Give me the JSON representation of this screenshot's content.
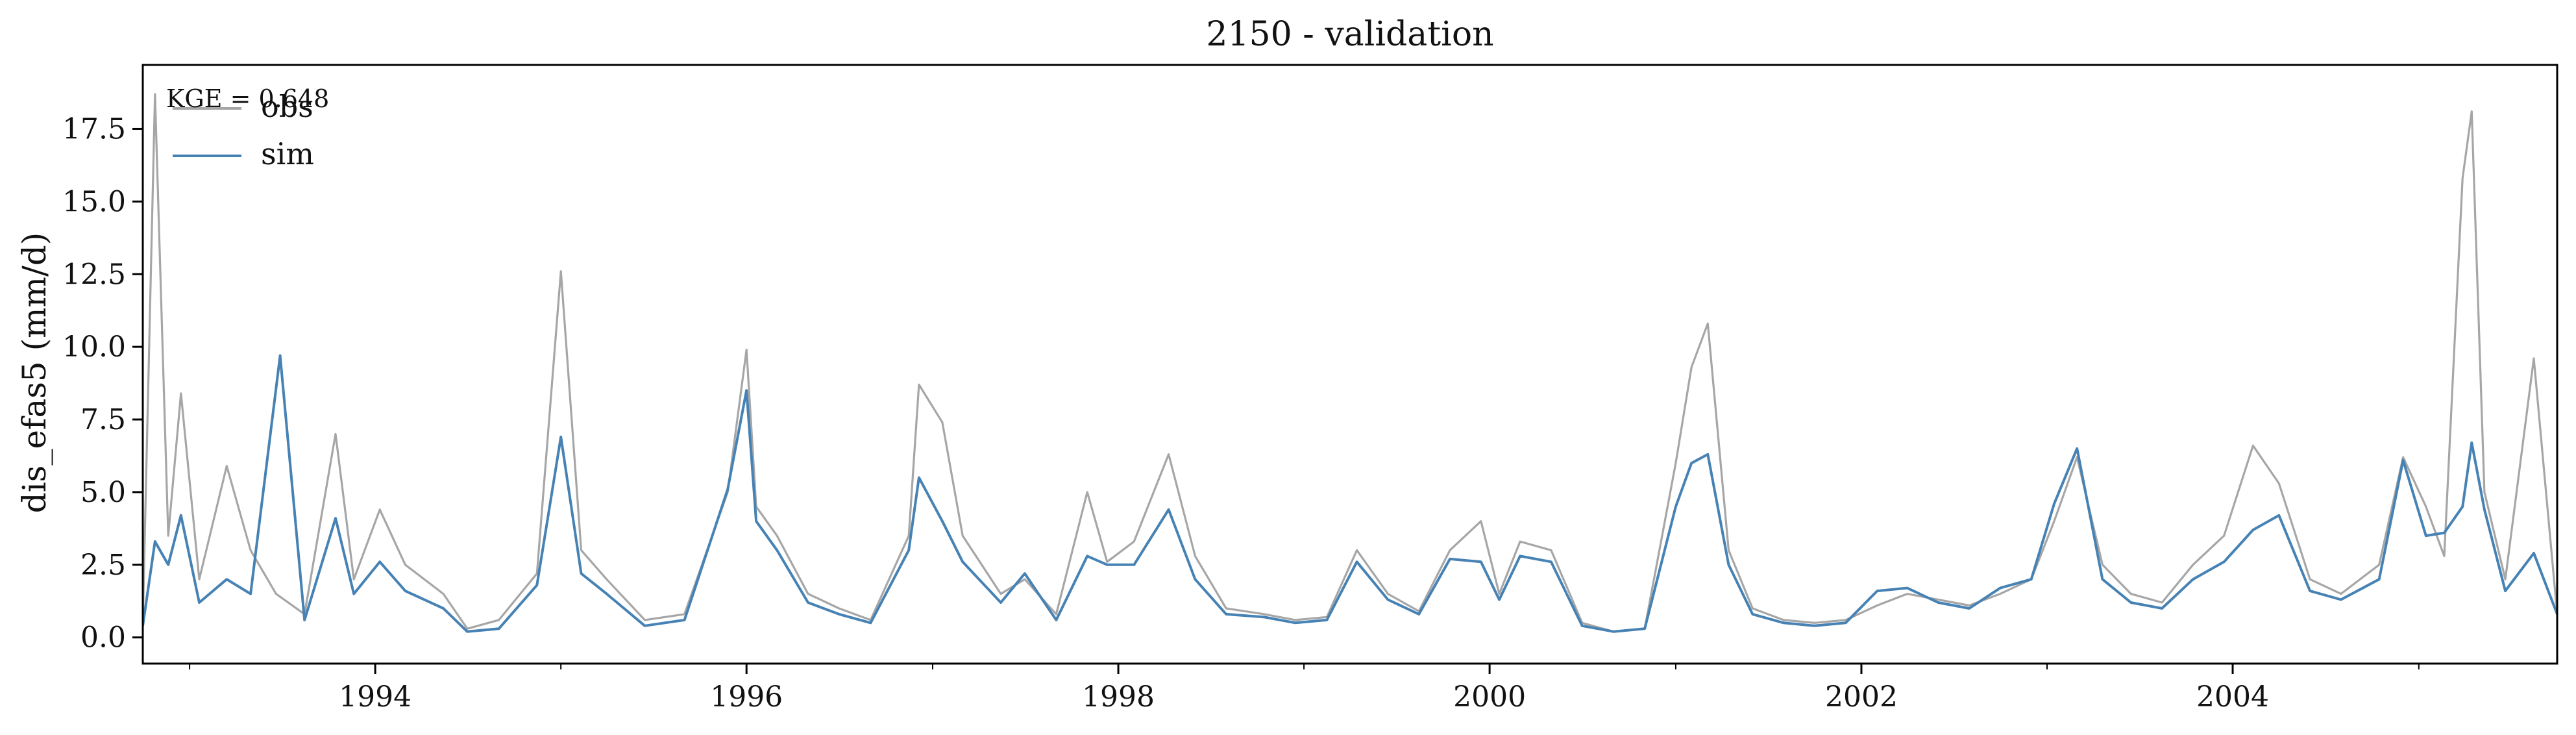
{
  "chart_data": {
    "type": "line",
    "title": "2150 - validation",
    "xlabel": "",
    "ylabel": "dis_efas5 (mm/d)",
    "xlim": [
      "1992-10-01",
      "2005-09-30"
    ],
    "ylim": [
      -0.9,
      19.7
    ],
    "x_ticks": [
      "1994",
      "1996",
      "1998",
      "2000",
      "2002",
      "2004"
    ],
    "y_ticks": [
      "0.0",
      "2.5",
      "5.0",
      "7.5",
      "10.0",
      "12.5",
      "15.0",
      "17.5"
    ],
    "grid": false,
    "legend_placement": "top-left",
    "annotation": "KGE = 0.648",
    "series": [
      {
        "name": "obs",
        "color": "#a6a6a6",
        "x": [
          "1992-10-01",
          "1992-10-25",
          "1992-11-20",
          "1992-12-15",
          "1993-01-20",
          "1993-03-15",
          "1993-05-01",
          "1993-06-20",
          "1993-08-15",
          "1993-10-15",
          "1993-11-20",
          "1994-01-10",
          "1994-03-01",
          "1994-05-15",
          "1994-07-01",
          "1994-09-01",
          "1994-11-15",
          "1995-01-01",
          "1995-02-10",
          "1995-04-01",
          "1995-06-15",
          "1995-09-01",
          "1995-11-25",
          "1996-01-01",
          "1996-01-20",
          "1996-03-01",
          "1996-05-01",
          "1996-07-01",
          "1996-09-01",
          "1996-11-15",
          "1996-12-05",
          "1997-01-20",
          "1997-03-01",
          "1997-05-15",
          "1997-07-01",
          "1997-09-01",
          "1997-11-01",
          "1997-12-10",
          "1998-02-01",
          "1998-04-10",
          "1998-06-01",
          "1998-08-01",
          "1998-10-15",
          "1998-12-15",
          "1999-02-15",
          "1999-04-15",
          "1999-06-15",
          "1999-08-15",
          "1999-10-15",
          "1999-12-15",
          "2000-01-20",
          "2000-03-01",
          "2000-05-01",
          "2000-07-01",
          "2000-09-01",
          "2000-11-01",
          "2001-01-01",
          "2001-02-01",
          "2001-03-05",
          "2001-04-15",
          "2001-06-01",
          "2001-08-01",
          "2001-10-01",
          "2001-12-01",
          "2002-02-01",
          "2002-04-01",
          "2002-06-01",
          "2002-08-01",
          "2002-10-01",
          "2002-12-01",
          "2003-01-15",
          "2003-03-01",
          "2003-04-20",
          "2003-06-15",
          "2003-08-15",
          "2003-10-15",
          "2003-12-15",
          "2004-02-10",
          "2004-04-01",
          "2004-06-01",
          "2004-08-01",
          "2004-10-15",
          "2004-12-01",
          "2005-01-15",
          "2005-02-20",
          "2005-03-28",
          "2005-04-15",
          "2005-05-10",
          "2005-06-20",
          "2005-08-15",
          "2005-09-30"
        ],
        "values": [
          0.5,
          18.7,
          3.5,
          8.4,
          2.0,
          5.9,
          3.0,
          1.5,
          0.8,
          7.0,
          2.0,
          4.4,
          2.5,
          1.5,
          0.3,
          0.6,
          2.2,
          12.6,
          3.0,
          2.0,
          0.6,
          0.8,
          5.0,
          9.9,
          4.5,
          3.5,
          1.5,
          1.0,
          0.6,
          3.5,
          8.7,
          7.4,
          3.5,
          1.5,
          2.0,
          0.8,
          5.0,
          2.6,
          3.3,
          6.3,
          2.8,
          1.0,
          0.8,
          0.6,
          0.7,
          3.0,
          1.5,
          0.9,
          3.0,
          4.0,
          1.5,
          3.3,
          3.0,
          0.5,
          0.2,
          0.3,
          6.0,
          9.3,
          10.8,
          3.0,
          1.0,
          0.6,
          0.5,
          0.6,
          1.1,
          1.5,
          1.3,
          1.1,
          1.5,
          2.0,
          4.0,
          6.2,
          2.5,
          1.5,
          1.2,
          2.5,
          3.5,
          6.6,
          5.3,
          2.0,
          1.5,
          2.5,
          6.2,
          4.5,
          2.8,
          15.8,
          18.1,
          5.0,
          2.0,
          9.6,
          0.8
        ]
      },
      {
        "name": "sim",
        "color": "#4682b4",
        "x": [
          "1992-10-01",
          "1992-10-25",
          "1992-11-20",
          "1992-12-15",
          "1993-01-20",
          "1993-03-15",
          "1993-05-01",
          "1993-06-28",
          "1993-08-15",
          "1993-10-15",
          "1993-11-20",
          "1994-01-10",
          "1994-03-01",
          "1994-05-15",
          "1994-07-01",
          "1994-09-01",
          "1994-11-15",
          "1995-01-01",
          "1995-02-10",
          "1995-04-01",
          "1995-06-15",
          "1995-09-01",
          "1995-11-25",
          "1996-01-01",
          "1996-01-20",
          "1996-03-01",
          "1996-05-01",
          "1996-07-01",
          "1996-09-01",
          "1996-11-15",
          "1996-12-05",
          "1997-01-20",
          "1997-03-01",
          "1997-05-15",
          "1997-07-01",
          "1997-09-01",
          "1997-11-01",
          "1997-12-10",
          "1998-02-01",
          "1998-04-10",
          "1998-06-01",
          "1998-08-01",
          "1998-10-15",
          "1998-12-15",
          "1999-02-15",
          "1999-04-15",
          "1999-06-15",
          "1999-08-15",
          "1999-10-15",
          "1999-12-15",
          "2000-01-20",
          "2000-03-01",
          "2000-05-01",
          "2000-07-01",
          "2000-09-01",
          "2000-11-01",
          "2001-01-01",
          "2001-02-01",
          "2001-03-05",
          "2001-04-15",
          "2001-06-01",
          "2001-08-01",
          "2001-10-01",
          "2001-12-01",
          "2002-02-01",
          "2002-04-01",
          "2002-06-01",
          "2002-08-01",
          "2002-10-01",
          "2002-12-01",
          "2003-01-15",
          "2003-03-01",
          "2003-04-20",
          "2003-06-15",
          "2003-08-15",
          "2003-10-15",
          "2003-12-15",
          "2004-02-10",
          "2004-04-01",
          "2004-06-01",
          "2004-08-01",
          "2004-10-15",
          "2004-12-01",
          "2005-01-15",
          "2005-02-20",
          "2005-03-28",
          "2005-04-15",
          "2005-05-10",
          "2005-06-20",
          "2005-08-15",
          "2005-09-30"
        ],
        "values": [
          0.4,
          3.3,
          2.5,
          4.2,
          1.2,
          2.0,
          1.5,
          9.7,
          0.6,
          4.1,
          1.5,
          2.6,
          1.6,
          1.0,
          0.2,
          0.3,
          1.8,
          6.9,
          2.2,
          1.5,
          0.4,
          0.6,
          5.1,
          8.5,
          4.0,
          3.0,
          1.2,
          0.8,
          0.5,
          3.0,
          5.5,
          4.0,
          2.6,
          1.2,
          2.2,
          0.6,
          2.8,
          2.5,
          2.5,
          4.4,
          2.0,
          0.8,
          0.7,
          0.5,
          0.6,
          2.6,
          1.3,
          0.8,
          2.7,
          2.6,
          1.3,
          2.8,
          2.6,
          0.4,
          0.2,
          0.3,
          4.5,
          6.0,
          6.3,
          2.5,
          0.8,
          0.5,
          0.4,
          0.5,
          1.6,
          1.7,
          1.2,
          1.0,
          1.7,
          2.0,
          4.6,
          6.5,
          2.0,
          1.2,
          1.0,
          2.0,
          2.6,
          3.7,
          4.2,
          1.6,
          1.3,
          2.0,
          6.1,
          3.5,
          3.6,
          4.5,
          6.7,
          4.4,
          1.6,
          2.9,
          0.8
        ]
      }
    ]
  }
}
